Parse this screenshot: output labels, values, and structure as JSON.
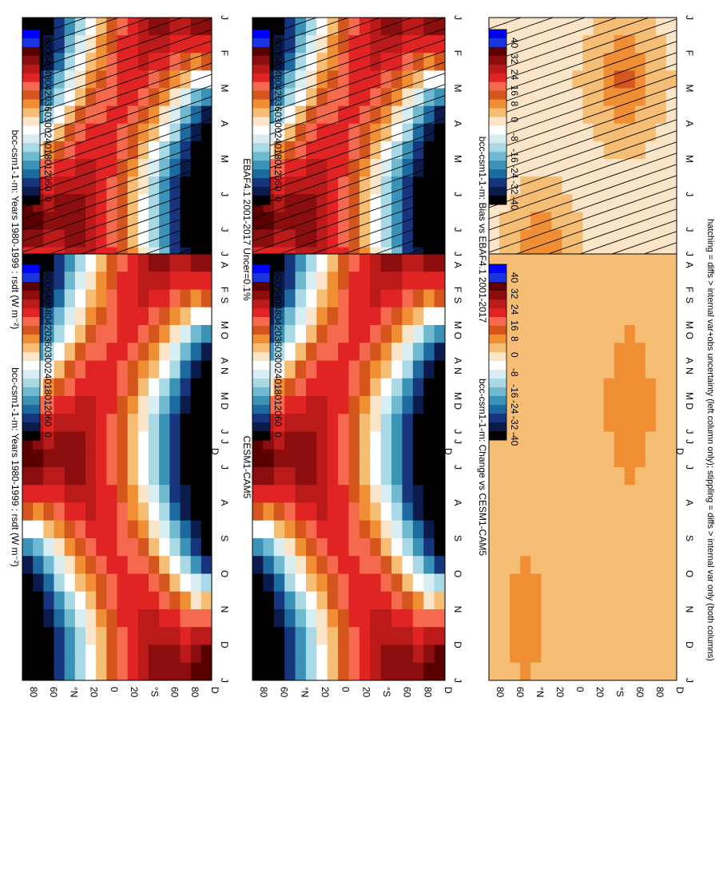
{
  "figure": {
    "footnote": "hatching = diffs > internal var+obs uncertainty (left column only); stippling = diffs > internal var only (both columns)"
  },
  "chart_data": [
    {
      "type": "heatmap",
      "title": "bcc-csm1-1-m: Years 1980-1999 : rsdt (W m⁻²)",
      "x_ticks": [
        "J",
        "F",
        "M",
        "A",
        "M",
        "J",
        "J",
        "A",
        "S",
        "O",
        "N",
        "D",
        "J"
      ],
      "y_ticks": [
        "80",
        "60",
        "°N",
        "20",
        "0",
        "20",
        "°S",
        "60",
        "80",
        "D"
      ],
      "colorbar": {
        "labels": [
          "600",
          "540",
          "480",
          "420",
          "360",
          "300",
          "240",
          "180",
          "120",
          "60",
          "0"
        ],
        "colors": [
          "#0000ff",
          "#1a35e0",
          "#5a0000",
          "#8b0d0d",
          "#bb1a1a",
          "#e02424",
          "#f56a4e",
          "#d5561d",
          "#ef8e32",
          "#f6bd74",
          "#fbe5c8",
          "#ffffff",
          "#d9eef3",
          "#a9d9e4",
          "#6fbad0",
          "#3a92b7",
          "#1c6aa0",
          "#16357d",
          "#0b1b4c",
          "#000000"
        ]
      },
      "hatching": true,
      "field": "insolation_current"
    },
    {
      "type": "heatmap",
      "title": "bcc-csm1-1-m: Years 1980-1999 : rsdt (W m⁻²)",
      "x_ticks": [
        "J",
        "F",
        "M",
        "A",
        "M",
        "J",
        "J",
        "A",
        "S",
        "O",
        "N",
        "D",
        "J"
      ],
      "y_ticks": [
        "80",
        "60",
        "°N",
        "20",
        "0",
        "20",
        "°S",
        "60",
        "80",
        "D"
      ],
      "colorbar": {
        "labels": [
          "600",
          "540",
          "480",
          "420",
          "360",
          "300",
          "240",
          "180",
          "120",
          "60",
          "0"
        ]
      },
      "hatching": false,
      "field": "insolation_current"
    },
    {
      "type": "heatmap",
      "title": "EBAF4.1 2001-2017 Uncer=0.1%",
      "x_ticks": [
        "J",
        "F",
        "M",
        "A",
        "M",
        "J",
        "J",
        "A",
        "S",
        "O",
        "N",
        "D",
        "J"
      ],
      "y_ticks": [
        "80",
        "60",
        "°N",
        "20",
        "0",
        "20",
        "°S",
        "60",
        "80",
        "D"
      ],
      "colorbar": {
        "labels": [
          "600",
          "540",
          "480",
          "420",
          "360",
          "300",
          "240",
          "180",
          "120",
          "60",
          "0"
        ]
      },
      "hatching": true,
      "field": "insolation_obs"
    },
    {
      "type": "heatmap",
      "title": "CESM1-CAM5",
      "x_ticks": [
        "J",
        "F",
        "M",
        "A",
        "M",
        "J",
        "J",
        "A",
        "S",
        "O",
        "N",
        "D",
        "J"
      ],
      "y_ticks": [
        "80",
        "60",
        "°N",
        "20",
        "0",
        "20",
        "°S",
        "60",
        "80",
        "D"
      ],
      "colorbar": {
        "labels": [
          "600",
          "540",
          "480",
          "420",
          "360",
          "300",
          "240",
          "180",
          "120",
          "60",
          "0"
        ]
      },
      "hatching": false,
      "field": "insolation_current"
    },
    {
      "type": "heatmap",
      "title": "bcc-csm1-1-m: Bias vs EBAF4.1 2001-2017",
      "x_ticks": [
        "J",
        "F",
        "M",
        "A",
        "M",
        "J",
        "J",
        "A",
        "S",
        "O",
        "N",
        "D",
        "J"
      ],
      "y_ticks": [
        "80",
        "60",
        "°N",
        "20",
        "0",
        "20",
        "°S",
        "60",
        "80",
        "D"
      ],
      "colorbar": {
        "labels": [
          "40",
          "32",
          "24",
          "16",
          "8",
          "0",
          "-8",
          "-16",
          "-24",
          "-32",
          "-40"
        ],
        "colors": [
          "#0000ff",
          "#1a35e0",
          "#5a0000",
          "#8b0d0d",
          "#bb1a1a",
          "#e02424",
          "#f56a4e",
          "#d5561d",
          "#ef8e32",
          "#f6bd74",
          "#fbe5c8",
          "#ffffff",
          "#d9eef3",
          "#a9d9e4",
          "#6fbad0",
          "#3a92b7",
          "#1c6aa0",
          "#16357d",
          "#0b1b4c",
          "#000000"
        ]
      },
      "hatching": true,
      "field": "bias"
    },
    {
      "type": "heatmap",
      "title": "bcc-csm1-1-m: Change vs CESM1-CAM5",
      "x_ticks": [
        "J",
        "F",
        "M",
        "A",
        "M",
        "J",
        "J",
        "A",
        "S",
        "O",
        "N",
        "D",
        "J"
      ],
      "y_ticks": [
        "80",
        "60",
        "°N",
        "20",
        "0",
        "20",
        "°S",
        "60",
        "80",
        "D"
      ],
      "colorbar": {
        "labels": [
          "40",
          "32",
          "24",
          "16",
          "8",
          "0",
          "-8",
          "-16",
          "-24",
          "-32",
          "-40"
        ]
      },
      "hatching": false,
      "field": "change"
    }
  ]
}
